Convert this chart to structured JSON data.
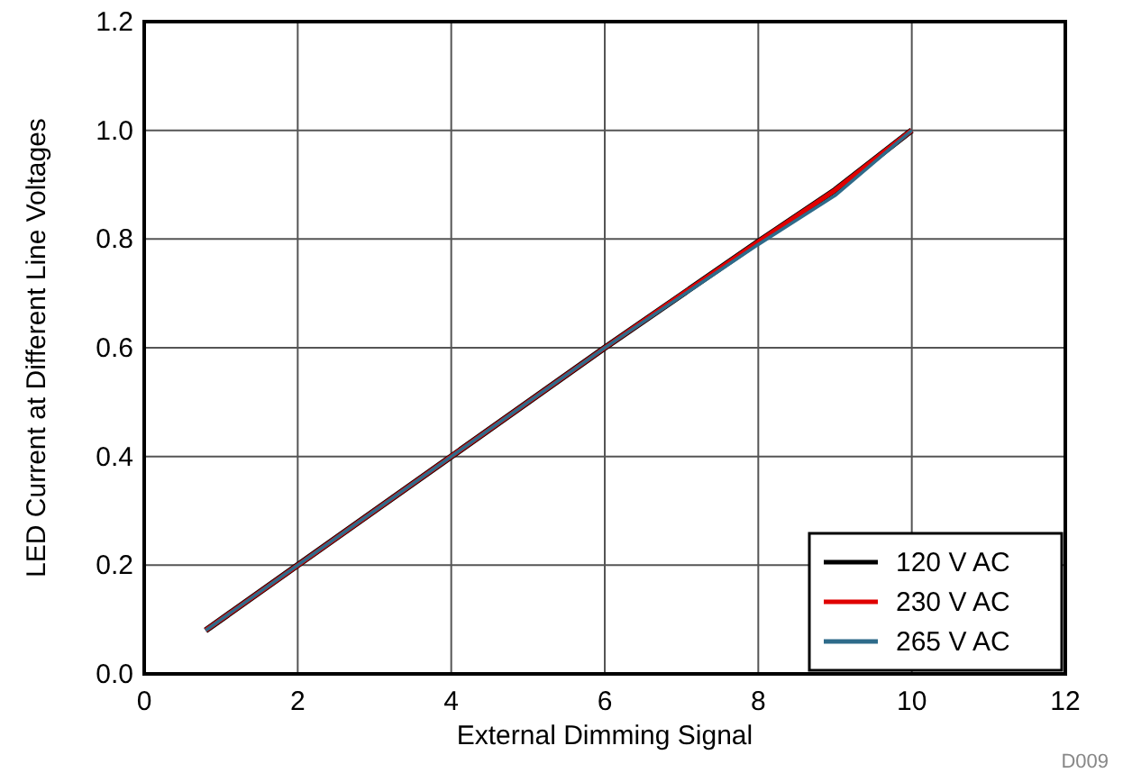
{
  "chart_data": {
    "type": "line",
    "xlabel": "External Dimming Signal",
    "ylabel": "LED Current at Different Line Voltages",
    "x": [
      0.8,
      2,
      4,
      6,
      8,
      9,
      10
    ],
    "series": [
      {
        "name": "120 V AC",
        "color": "#000000",
        "values": [
          0.08,
          0.2,
          0.4,
          0.6,
          0.795,
          0.89,
          1.0
        ]
      },
      {
        "name": "230 V AC",
        "color": "#e00000",
        "values": [
          0.08,
          0.2,
          0.4,
          0.6,
          0.795,
          0.89,
          1.0
        ]
      },
      {
        "name": "265 V AC",
        "color": "#2e6b8a",
        "values": [
          0.08,
          0.2,
          0.4,
          0.6,
          0.79,
          0.88,
          1.0
        ]
      }
    ],
    "xlim": [
      0,
      12
    ],
    "xticks": [
      0,
      2,
      4,
      6,
      8,
      10,
      12
    ],
    "ylim": [
      0,
      1.2
    ],
    "yticks": [
      {
        "value": 0,
        "label": "0.0"
      },
      {
        "value": 0.2,
        "label": "0.2"
      },
      {
        "value": 0.4,
        "label": "0.4"
      },
      {
        "value": 0.6,
        "label": "0.6"
      },
      {
        "value": 0.8,
        "label": "0.8"
      },
      {
        "value": 1.0,
        "label": "1.0"
      },
      {
        "value": 1.2,
        "label": "1.2"
      }
    ],
    "grid": true,
    "legend": "bottom right",
    "annotations": [
      "D009"
    ]
  }
}
